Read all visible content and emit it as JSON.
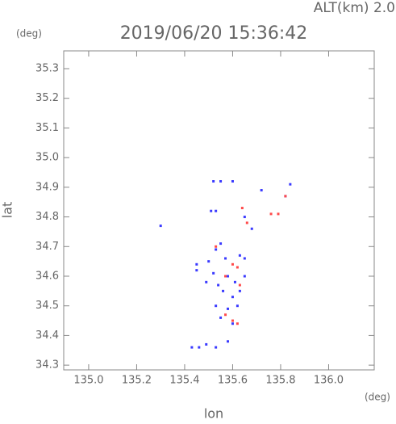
{
  "chart_data": {
    "type": "scatter",
    "title": "2019/06/20 15:36:42",
    "subtitle": "ALT(km) 2.0",
    "x_label": "lon",
    "y_label": "lat",
    "x_unit": "(deg)",
    "y_unit": "(deg)",
    "xlim": [
      134.896,
      136.19
    ],
    "ylim": [
      34.284,
      35.36
    ],
    "xticks": [
      {
        "value": 135,
        "label": "135.0"
      },
      135.2,
      135.4,
      135.6,
      135.8,
      {
        "value": 136,
        "label": "136.0"
      }
    ],
    "yticks": [
      34.3,
      34.4,
      34.5,
      34.6,
      34.7,
      34.8,
      34.9,
      {
        "value": 35,
        "label": "35.0"
      },
      35.1,
      35.2,
      35.3
    ],
    "series": [
      {
        "color": "#3a3aff",
        "x": [
          135.52,
          135.55,
          135.6,
          135.84,
          135.72,
          135.82,
          135.51,
          135.53,
          135.3,
          135.65,
          135.68,
          135.55,
          135.53,
          135.45,
          135.5,
          135.57,
          135.63,
          135.65,
          135.52,
          135.58,
          135.61,
          135.54,
          135.49,
          135.65,
          135.56,
          135.6,
          135.53,
          135.58,
          135.62,
          135.55,
          135.6,
          135.43,
          135.46,
          135.49,
          135.53,
          135.58,
          135.45,
          135.63
        ],
        "values": [
          34.92,
          34.92,
          34.92,
          34.91,
          34.89,
          34.87,
          34.82,
          34.82,
          34.77,
          34.8,
          34.76,
          34.71,
          34.69,
          34.64,
          34.65,
          34.66,
          34.67,
          34.66,
          34.61,
          34.6,
          34.58,
          34.57,
          34.58,
          34.6,
          34.55,
          34.53,
          34.5,
          34.49,
          34.5,
          34.46,
          34.44,
          34.36,
          34.36,
          34.37,
          34.36,
          34.38,
          34.62,
          34.55
        ]
      },
      {
        "color": "#ff4a4a",
        "x": [
          135.64,
          135.82,
          135.76,
          135.66,
          135.6,
          135.62,
          135.57,
          135.63,
          135.6,
          135.62,
          135.57,
          135.79,
          135.53
        ],
        "values": [
          34.83,
          34.87,
          34.81,
          34.78,
          34.64,
          34.63,
          34.6,
          34.57,
          34.45,
          34.44,
          34.47,
          34.81,
          34.7
        ]
      }
    ]
  }
}
